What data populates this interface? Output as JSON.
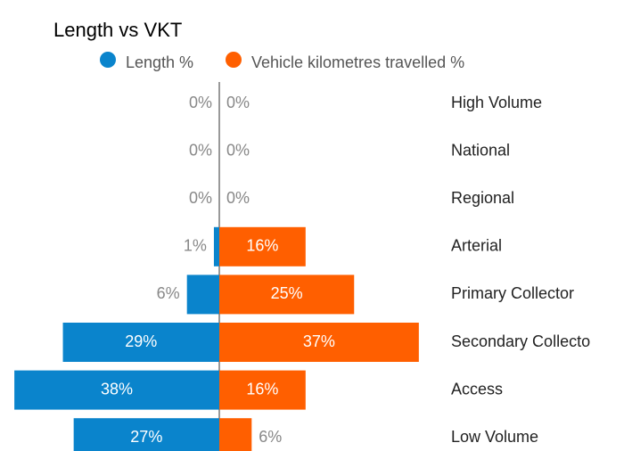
{
  "chart_data": {
    "type": "butterfly",
    "title": "Length vs VKT",
    "categories": [
      "High Volume",
      "National",
      "Regional",
      "Arterial",
      "Primary Collector",
      "Secondary Collecto",
      "Access",
      "Low Volume"
    ],
    "series": [
      {
        "name": "Length %",
        "color": "#0a84cc",
        "side": "left",
        "values": [
          0,
          0,
          0,
          1,
          6,
          29,
          38,
          27
        ],
        "value_labels": [
          "0%",
          "0%",
          "0%",
          "1%",
          "6%",
          "29%",
          "38%",
          "27%"
        ]
      },
      {
        "name": "Vehicle kilometres travelled %",
        "color": "#ff5f00",
        "side": "right",
        "values": [
          0,
          0,
          0,
          16,
          25,
          37,
          16,
          6
        ],
        "value_labels": [
          "0%",
          "0%",
          "0%",
          "16%",
          "25%",
          "37%",
          "16%",
          "6%"
        ]
      }
    ]
  }
}
